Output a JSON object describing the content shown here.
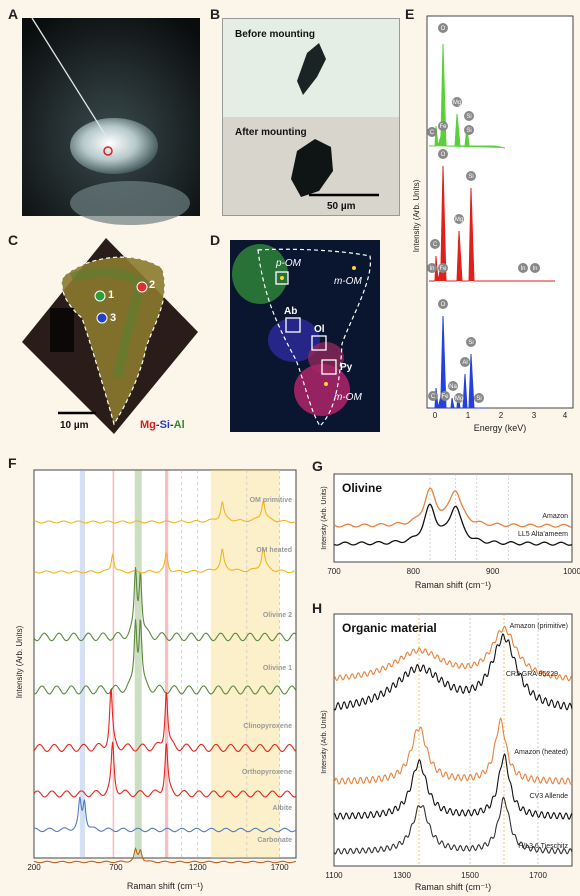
{
  "panel_labels": {
    "A": "A",
    "B": "B",
    "C": "C",
    "D": "D",
    "E": "E",
    "F": "F",
    "G": "G",
    "H": "H"
  },
  "panel_b": {
    "before": "Before mounting",
    "after": "After mounting",
    "scale": "50 µm"
  },
  "panel_c": {
    "scale": "10 µm",
    "legend_mg": "Mg",
    "legend_si": "Si",
    "legend_al": "Al",
    "spots": [
      "1",
      "2",
      "3"
    ]
  },
  "panel_d": {
    "p_om": "p-OM",
    "m_om_1": "m-OM",
    "m_om_2": "m-OM",
    "ab": "Ab",
    "ol": "Ol",
    "py": "Py"
  },
  "panel_e": {
    "xlabel": "Energy (keV)",
    "ylabel": "Intensity (Arb. Units)",
    "xticks": [
      "0",
      "1",
      "2",
      "3",
      "4"
    ],
    "green_elements": [
      "O",
      "C",
      "Fe",
      "Mg",
      "Si",
      "Si"
    ],
    "red_elements": [
      "O",
      "C",
      "In",
      "Fe",
      "Mg",
      "Si",
      "In",
      "In"
    ],
    "blue_elements": [
      "O",
      "C",
      "Fe",
      "Na",
      "Mg",
      "Al",
      "Si",
      "Si"
    ]
  },
  "chart_data": [
    {
      "type": "line",
      "panel": "F",
      "xlabel": "Raman shift (cm⁻¹)",
      "ylabel": "Intensity (Arb. Units)",
      "xlim": [
        200,
        1800
      ],
      "xticks": [
        "200",
        "700",
        "1200",
        "1700"
      ],
      "series": [
        {
          "name": "OM primitive",
          "color": "#f2b51f",
          "peaks": [
            1350,
            1600
          ]
        },
        {
          "name": "OM heated",
          "color": "#f2b51f",
          "peaks": [
            680,
            1008,
            1350,
            1600
          ]
        },
        {
          "name": "Olivine 2",
          "color": "#5a8a3c",
          "peaks": [
            820,
            850
          ]
        },
        {
          "name": "Olivine 1",
          "color": "#5a8a3c",
          "peaks": [
            820,
            850
          ]
        },
        {
          "name": "Clinopyroxene",
          "color": "#e8241c",
          "peaks": [
            670,
            1008
          ]
        },
        {
          "name": "Orthopyroxene",
          "color": "#e8241c",
          "peaks": [
            680,
            1008
          ]
        },
        {
          "name": "Albite",
          "color": "#4f7cc0",
          "peaks": [
            480,
            508
          ]
        },
        {
          "name": "Carbonate",
          "color": "#c0601e",
          "peaks": [
            820,
            850
          ]
        }
      ]
    },
    {
      "type": "line",
      "panel": "G",
      "title": "Olivine",
      "xlabel": "Raman shift (cm⁻¹)",
      "ylabel": "Intensity (Arb. Units)",
      "xlim": [
        700,
        1000
      ],
      "xticks": [
        "700",
        "800",
        "900",
        "1000"
      ],
      "series": [
        {
          "name": "Amazon",
          "color": "#e8823c",
          "peaks": [
            821,
            853
          ]
        },
        {
          "name": "LL5 Alta'ameem",
          "color": "#111111",
          "peaks": [
            821,
            853
          ]
        }
      ]
    },
    {
      "type": "line",
      "panel": "H",
      "title": "Organic material",
      "xlabel": "Raman shift (cm⁻¹)",
      "ylabel": "Intensity (Arb. Units)",
      "xlim": [
        1100,
        1800
      ],
      "xticks": [
        "1100",
        "1300",
        "1500",
        "1700"
      ],
      "series": [
        {
          "name": "Amazon (primitive)",
          "color": "#e8823c",
          "peaks": [
            1350,
            1600
          ]
        },
        {
          "name": "CR2 GRA 95229",
          "color": "#111111",
          "peaks": [
            1350,
            1600
          ]
        },
        {
          "name": "Amazon (heated)",
          "color": "#e8823c",
          "peaks": [
            1350,
            1590
          ]
        },
        {
          "name": "CV3 Allende",
          "color": "#111111",
          "peaks": [
            1350,
            1600
          ]
        },
        {
          "name": "H/L3.6 Tieschitz",
          "color": "#333333",
          "peaks": [
            1355,
            1600
          ]
        }
      ]
    }
  ]
}
